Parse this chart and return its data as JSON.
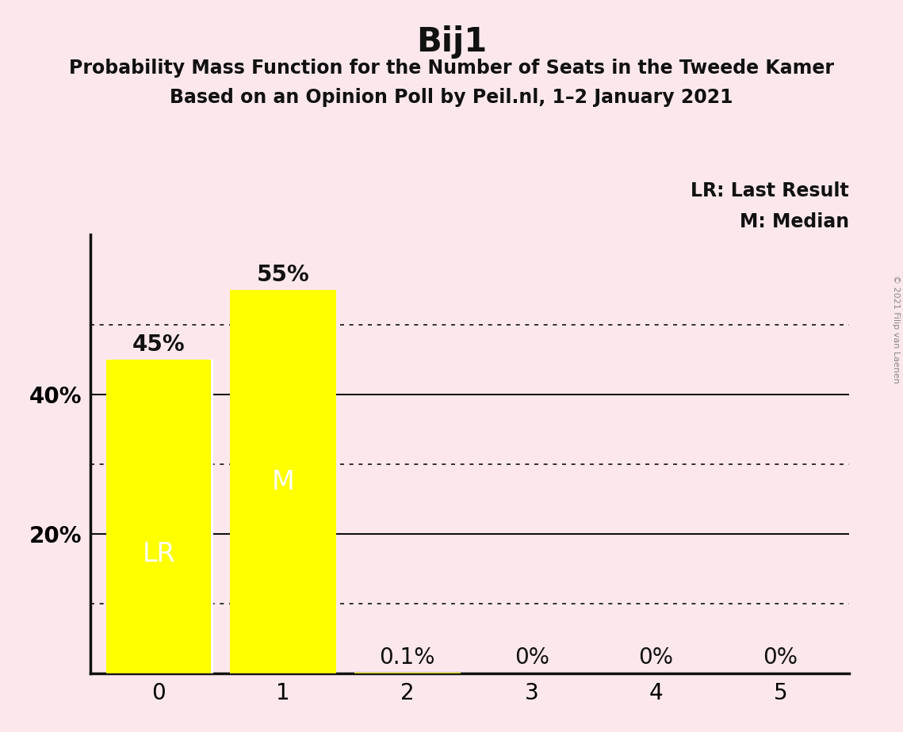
{
  "title": "Bij1",
  "subtitle1": "Probability Mass Function for the Number of Seats in the Tweede Kamer",
  "subtitle2": "Based on an Opinion Poll by Peil.nl, 1–2 January 2021",
  "copyright": "© 2021 Filip van Laenen",
  "categories": [
    0,
    1,
    2,
    3,
    4,
    5
  ],
  "values": [
    0.45,
    0.55,
    0.001,
    0.0,
    0.0,
    0.0
  ],
  "bar_labels": [
    "45%",
    "55%",
    "0.1%",
    "0%",
    "0%",
    "0%"
  ],
  "bar_color": "#ffff00",
  "background_color": "#fce8ec",
  "lr_bar_index": 0,
  "median_bar_index": 1,
  "lr_label": "LR",
  "median_label": "M",
  "legend_lr": "LR: Last Result",
  "legend_m": "M: Median",
  "ylabel_ticks": [
    0.2,
    0.4
  ],
  "ylabel_labels": [
    "20%",
    "40%"
  ],
  "ylim": [
    0,
    0.63
  ],
  "solid_lines": [
    0.2,
    0.4
  ],
  "dotted_lines": [
    0.1,
    0.3,
    0.5
  ],
  "title_fontsize": 30,
  "subtitle_fontsize": 17,
  "bar_label_fontsize": 20,
  "axis_tick_fontsize": 20,
  "legend_fontsize": 17,
  "inner_label_fontsize": 24,
  "bar_width": 0.85
}
